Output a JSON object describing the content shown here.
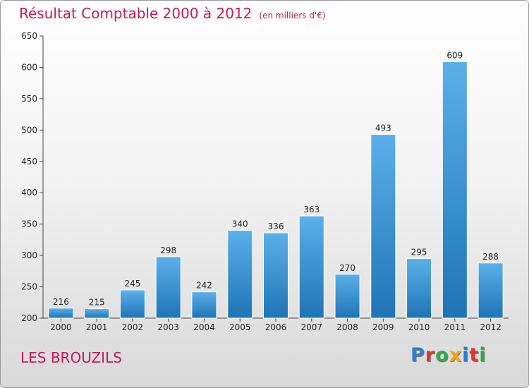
{
  "chart_data": {
    "type": "bar",
    "title": "Résultat Comptable 2000 à 2012",
    "unit_label": "(en milliers d'€)",
    "categories": [
      "2000",
      "2001",
      "2002",
      "2003",
      "2004",
      "2005",
      "2006",
      "2007",
      "2008",
      "2009",
      "2010",
      "2011",
      "2012"
    ],
    "values": [
      216,
      215,
      245,
      298,
      242,
      340,
      336,
      363,
      270,
      493,
      295,
      609,
      288
    ],
    "ylim": [
      200,
      650
    ],
    "yticks": [
      200,
      250,
      300,
      350,
      400,
      450,
      500,
      550,
      600,
      650
    ],
    "xlabel": "",
    "ylabel": "",
    "grid": false,
    "colors": {
      "bar_top": "#5bb0ea",
      "bar_bottom": "#1f74b5",
      "title": "#c8175a"
    }
  },
  "commune": "LES BROUZILS",
  "logo": {
    "letters": [
      {
        "ch": "P",
        "color": "#2b7fd0"
      },
      {
        "ch": "r",
        "color": "#e2352b"
      },
      {
        "ch": "o",
        "color": "#2fa84f"
      },
      {
        "ch": "x",
        "color": "#f2a416"
      },
      {
        "ch": "i",
        "color": "#2b7fd0"
      },
      {
        "ch": "t",
        "color": "#e2352b"
      },
      {
        "ch": "i",
        "color": "#2fa84f"
      }
    ]
  }
}
